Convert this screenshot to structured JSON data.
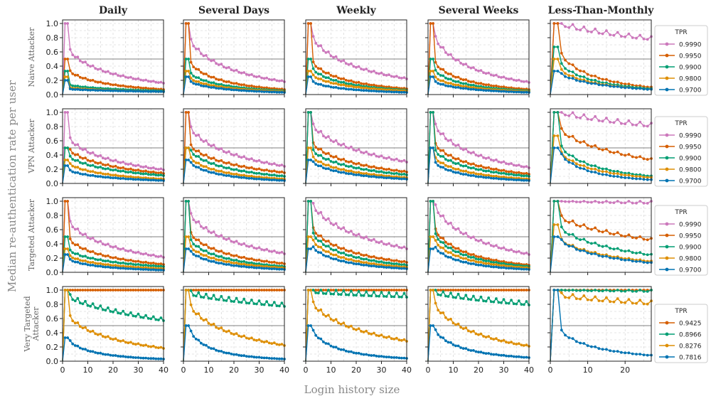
{
  "figure": {
    "ylabel": "Median re-authentication rate per user",
    "xlabel": "Login history size",
    "columns": [
      "Daily",
      "Several Days",
      "Weekly",
      "Several Weeks",
      "Less-Than-Monthly"
    ],
    "rows": [
      {
        "label": "Naive Attacker",
        "lines": [
          "Naive Attacker"
        ]
      },
      {
        "label": "VPN Attacker",
        "lines": [
          "VPN Attacker"
        ]
      },
      {
        "label": "Targeted Attacker",
        "lines": [
          "Targeted Attacker"
        ]
      },
      {
        "label": "Very Targeted Attacker",
        "lines": [
          "Very Targeted",
          "Attacker"
        ]
      }
    ],
    "y_ticks": [
      "0.0",
      "0.2",
      "0.4",
      "0.6",
      "0.8",
      "1.0"
    ],
    "x_ticks": [
      "0",
      "10",
      "20",
      "30",
      "40"
    ],
    "legend_title": "TPR",
    "colors": {
      "pink": "#cc78bc",
      "red": "#d55e00",
      "green": "#029e73",
      "orange": "#de8f05",
      "blue": "#0173b2",
      "grid": "#cccccc",
      "refline": "#999999"
    }
  },
  "chart_data": {
    "type": "line",
    "layout": "4x5 grid of small-multiple line charts",
    "x_range_first4_columns": [
      0,
      40
    ],
    "x_range_last_column": [
      0,
      27
    ],
    "ylim": [
      0,
      1.05
    ],
    "reference_line_y": 0.5,
    "grid": true,
    "legend_placement": "right of each row",
    "series_top3_rows": [
      {
        "name": "0.9990",
        "color": "#cc78bc"
      },
      {
        "name": "0.9950",
        "color": "#d55e00"
      },
      {
        "name": "0.9900",
        "color": "#029e73"
      },
      {
        "name": "0.9800",
        "color": "#de8f05"
      },
      {
        "name": "0.9700",
        "color": "#0173b2"
      }
    ],
    "series_bottom_row": [
      {
        "name": "0.9425",
        "color": "#d55e00"
      },
      {
        "name": "0.8966",
        "color": "#029e73"
      },
      {
        "name": "0.8276",
        "color": "#de8f05"
      },
      {
        "name": "0.7816",
        "color": "#0173b2"
      }
    ],
    "panels": [
      [
        {
          "xmax": 40,
          "series": [
            {
              "start": 1.0,
              "peak": 0.67,
              "end": 0.16
            },
            {
              "start": 0.5,
              "peak": 0.36,
              "end": 0.07
            },
            {
              "start": 0.33,
              "peak": 0.14,
              "end": 0.05
            },
            {
              "start": 0.25,
              "peak": 0.1,
              "end": 0.04
            },
            {
              "start": 0.2,
              "peak": 0.08,
              "end": 0.04
            }
          ]
        },
        {
          "xmax": 40,
          "series": [
            {
              "start": 1.0,
              "peak": 0.83,
              "end": 0.18
            },
            {
              "start": 1.0,
              "peak": 0.5,
              "end": 0.07
            },
            {
              "start": 0.5,
              "peak": 0.33,
              "end": 0.05
            },
            {
              "start": 0.33,
              "peak": 0.25,
              "end": 0.04
            },
            {
              "start": 0.25,
              "peak": 0.2,
              "end": 0.03
            }
          ]
        },
        {
          "xmax": 40,
          "series": [
            {
              "start": 1.0,
              "peak": 0.86,
              "end": 0.22
            },
            {
              "start": 1.0,
              "peak": 0.5,
              "end": 0.08
            },
            {
              "start": 0.5,
              "peak": 0.4,
              "end": 0.06
            },
            {
              "start": 0.33,
              "peak": 0.3,
              "end": 0.05
            },
            {
              "start": 0.25,
              "peak": 0.2,
              "end": 0.03
            }
          ]
        },
        {
          "xmax": 40,
          "series": [
            {
              "start": 1.0,
              "peak": 0.88,
              "end": 0.17
            },
            {
              "start": 1.0,
              "peak": 0.5,
              "end": 0.07
            },
            {
              "start": 0.5,
              "peak": 0.38,
              "end": 0.05
            },
            {
              "start": 0.33,
              "peak": 0.27,
              "end": 0.04
            },
            {
              "start": 0.25,
              "peak": 0.2,
              "end": 0.03
            }
          ]
        },
        {
          "xmax": 27,
          "series": [
            {
              "start": 1.0,
              "peak": 1.0,
              "end": 0.77
            },
            {
              "start": 1.0,
              "peak": 0.67,
              "end": 0.1
            },
            {
              "start": 0.67,
              "peak": 0.5,
              "end": 0.08
            },
            {
              "start": 0.5,
              "peak": 0.4,
              "end": 0.07
            },
            {
              "start": 0.33,
              "peak": 0.33,
              "end": 0.07
            }
          ]
        }
      ],
      [
        {
          "xmax": 40,
          "series": [
            {
              "start": 1.0,
              "peak": 0.67,
              "end": 0.19
            },
            {
              "start": 0.5,
              "peak": 0.5,
              "end": 0.14
            },
            {
              "start": 0.5,
              "peak": 0.4,
              "end": 0.11
            },
            {
              "start": 0.33,
              "peak": 0.3,
              "end": 0.06
            },
            {
              "start": 0.25,
              "peak": 0.2,
              "end": 0.04
            }
          ]
        },
        {
          "xmax": 40,
          "series": [
            {
              "start": 1.0,
              "peak": 0.83,
              "end": 0.24
            },
            {
              "start": 1.0,
              "peak": 0.57,
              "end": 0.15
            },
            {
              "start": 0.5,
              "peak": 0.5,
              "end": 0.1
            },
            {
              "start": 0.5,
              "peak": 0.4,
              "end": 0.06
            },
            {
              "start": 0.33,
              "peak": 0.33,
              "end": 0.04
            }
          ]
        },
        {
          "xmax": 40,
          "series": [
            {
              "start": 1.0,
              "peak": 0.86,
              "end": 0.3
            },
            {
              "start": 1.0,
              "peak": 0.6,
              "end": 0.16
            },
            {
              "start": 1.0,
              "peak": 0.5,
              "end": 0.12
            },
            {
              "start": 0.5,
              "peak": 0.4,
              "end": 0.08
            },
            {
              "start": 0.33,
              "peak": 0.33,
              "end": 0.06
            }
          ]
        },
        {
          "xmax": 40,
          "series": [
            {
              "start": 1.0,
              "peak": 0.88,
              "end": 0.22
            },
            {
              "start": 1.0,
              "peak": 0.6,
              "end": 0.13
            },
            {
              "start": 1.0,
              "peak": 0.5,
              "end": 0.1
            },
            {
              "start": 0.5,
              "peak": 0.4,
              "end": 0.06
            },
            {
              "start": 0.5,
              "peak": 0.33,
              "end": 0.04
            }
          ]
        },
        {
          "xmax": 27,
          "series": [
            {
              "start": 1.0,
              "peak": 1.0,
              "end": 0.8
            },
            {
              "start": 1.0,
              "peak": 0.8,
              "end": 0.33
            },
            {
              "start": 1.0,
              "peak": 0.6,
              "end": 0.1
            },
            {
              "start": 0.67,
              "peak": 0.5,
              "end": 0.08
            },
            {
              "start": 0.5,
              "peak": 0.5,
              "end": 0.05
            }
          ]
        }
      ],
      [
        {
          "xmax": 40,
          "series": [
            {
              "start": 1.0,
              "peak": 0.75,
              "end": 0.21
            },
            {
              "start": 1.0,
              "peak": 0.5,
              "end": 0.11
            },
            {
              "start": 0.5,
              "peak": 0.33,
              "end": 0.08
            },
            {
              "start": 0.33,
              "peak": 0.25,
              "end": 0.05
            },
            {
              "start": 0.25,
              "peak": 0.2,
              "end": 0.03
            }
          ]
        },
        {
          "xmax": 40,
          "series": [
            {
              "start": 1.0,
              "peak": 0.86,
              "end": 0.26
            },
            {
              "start": 1.0,
              "peak": 0.6,
              "end": 0.12
            },
            {
              "start": 1.0,
              "peak": 0.5,
              "end": 0.08
            },
            {
              "start": 0.5,
              "peak": 0.4,
              "end": 0.06
            },
            {
              "start": 0.33,
              "peak": 0.33,
              "end": 0.04
            }
          ]
        },
        {
          "xmax": 40,
          "series": [
            {
              "start": 1.0,
              "peak": 1.0,
              "end": 0.33
            },
            {
              "start": 1.0,
              "peak": 0.67,
              "end": 0.14
            },
            {
              "start": 1.0,
              "peak": 0.6,
              "end": 0.1
            },
            {
              "start": 0.5,
              "peak": 0.5,
              "end": 0.07
            },
            {
              "start": 0.33,
              "peak": 0.4,
              "end": 0.05
            }
          ]
        },
        {
          "xmax": 40,
          "series": [
            {
              "start": 1.0,
              "peak": 1.0,
              "end": 0.25
            },
            {
              "start": 1.0,
              "peak": 0.67,
              "end": 0.1
            },
            {
              "start": 1.0,
              "peak": 0.6,
              "end": 0.08
            },
            {
              "start": 0.5,
              "peak": 0.5,
              "end": 0.06
            },
            {
              "start": 0.33,
              "peak": 0.4,
              "end": 0.04
            }
          ]
        },
        {
          "xmax": 27,
          "series": [
            {
              "start": 1.0,
              "peak": 1.0,
              "end": 0.97
            },
            {
              "start": 1.0,
              "peak": 0.8,
              "end": 0.45
            },
            {
              "start": 1.0,
              "peak": 0.67,
              "end": 0.24
            },
            {
              "start": 0.67,
              "peak": 0.5,
              "end": 0.15
            },
            {
              "start": 0.5,
              "peak": 0.5,
              "end": 0.13
            }
          ]
        }
      ],
      [
        {
          "xmax": 40,
          "series": [
            {
              "start": 1.0,
              "peak": 1.0,
              "end": 1.0
            },
            {
              "start": 1.0,
              "peak": 0.92,
              "end": 0.57
            },
            {
              "start": 1.0,
              "peak": 0.67,
              "end": 0.18
            },
            {
              "start": 0.33,
              "peak": 0.33,
              "end": 0.03
            }
          ]
        },
        {
          "xmax": 40,
          "series": [
            {
              "start": 1.0,
              "peak": 1.0,
              "end": 1.0
            },
            {
              "start": 1.0,
              "peak": 0.95,
              "end": 0.77
            },
            {
              "start": 1.0,
              "peak": 0.83,
              "end": 0.22
            },
            {
              "start": 0.5,
              "peak": 0.5,
              "end": 0.03
            }
          ]
        },
        {
          "xmax": 40,
          "series": [
            {
              "start": 1.0,
              "peak": 1.0,
              "end": 1.0
            },
            {
              "start": 1.0,
              "peak": 0.97,
              "end": 0.9
            },
            {
              "start": 1.0,
              "peak": 0.86,
              "end": 0.28
            },
            {
              "start": 0.5,
              "peak": 0.5,
              "end": 0.04
            }
          ]
        },
        {
          "xmax": 40,
          "series": [
            {
              "start": 1.0,
              "peak": 1.0,
              "end": 1.0
            },
            {
              "start": 1.0,
              "peak": 0.96,
              "end": 0.79
            },
            {
              "start": 1.0,
              "peak": 0.86,
              "end": 0.21
            },
            {
              "start": 0.5,
              "peak": 0.5,
              "end": 0.05
            }
          ]
        },
        {
          "xmax": 27,
          "series": [
            {
              "start": 1.0,
              "peak": 1.0,
              "end": 1.0
            },
            {
              "start": 1.0,
              "peak": 1.0,
              "end": 0.98
            },
            {
              "start": 1.0,
              "peak": 0.92,
              "end": 0.8
            },
            {
              "start": 1.0,
              "peak": 0.5,
              "end": 0.08
            }
          ]
        }
      ]
    ]
  }
}
